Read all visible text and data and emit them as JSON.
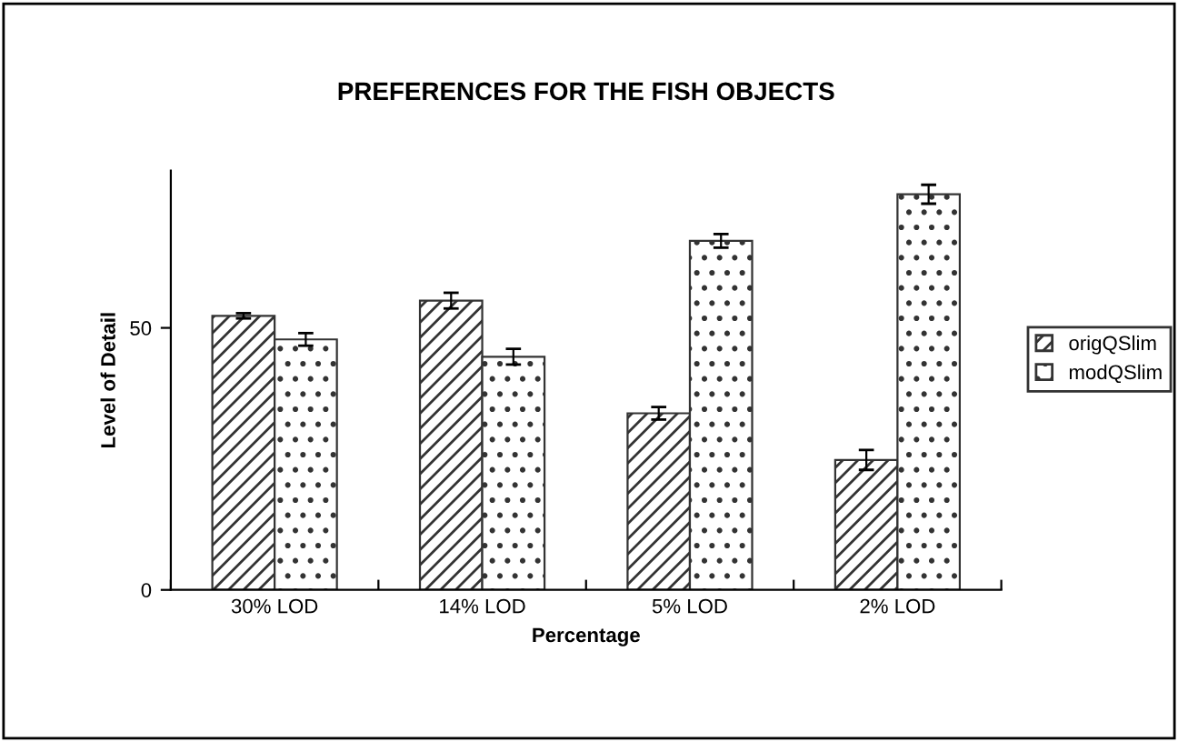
{
  "chart_data": {
    "type": "bar",
    "title": "PREFERENCES FOR THE FISH OBJECTS",
    "xlabel": "Percentage",
    "ylabel": "Level of Detail",
    "categories": [
      "30% LOD",
      "14% LOD",
      "5% LOD",
      "2% LOD"
    ],
    "series": [
      {
        "name": "origQSlim",
        "color": "#333333",
        "values": [
          52.3,
          55.2,
          33.7,
          24.8
        ],
        "errors": [
          0.5,
          1.5,
          1.2,
          1.9
        ]
      },
      {
        "name": "modQSlim",
        "color": "#333333",
        "values": [
          47.8,
          44.5,
          66.6,
          75.5
        ],
        "errors": [
          1.2,
          1.5,
          1.3,
          1.8
        ]
      }
    ],
    "ylim": [
      0,
      80
    ],
    "yticks": [
      0,
      50
    ],
    "grid": false,
    "legend": "right"
  }
}
